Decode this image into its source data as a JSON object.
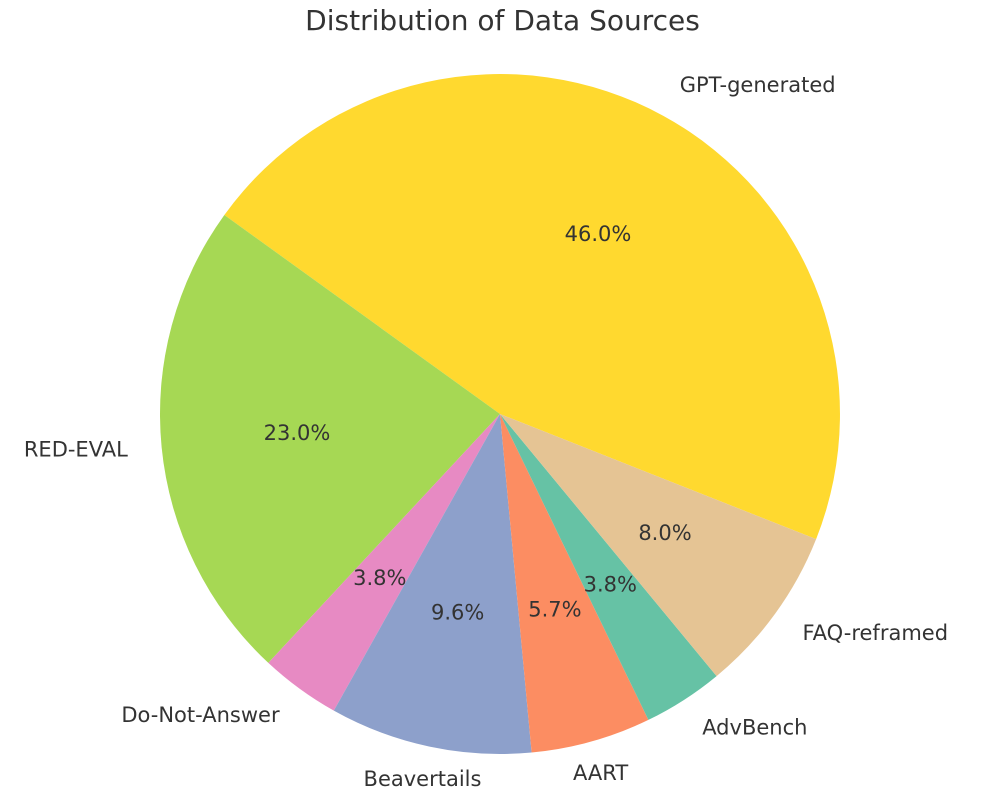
{
  "chart_data": {
    "type": "pie",
    "title": "Distribution of Data Sources",
    "slices": [
      {
        "label": "GPT-generated",
        "value": 46.0,
        "pct_label": "46.0%",
        "color": "#ffd92f"
      },
      {
        "label": "RED-EVAL",
        "value": 23.0,
        "pct_label": "23.0%",
        "color": "#a6d854"
      },
      {
        "label": "Do-Not-Answer",
        "value": 3.8,
        "pct_label": "3.8%",
        "color": "#e78ac3"
      },
      {
        "label": "Beavertails",
        "value": 9.6,
        "pct_label": "9.6%",
        "color": "#8da0cb"
      },
      {
        "label": "AART",
        "value": 5.7,
        "pct_label": "5.7%",
        "color": "#fc8d62"
      },
      {
        "label": "AdvBench",
        "value": 3.8,
        "pct_label": "3.8%",
        "color": "#66c2a5"
      },
      {
        "label": "FAQ-reframed",
        "value": 8.0,
        "pct_label": "8.0%",
        "color": "#e5c494"
      }
    ]
  }
}
